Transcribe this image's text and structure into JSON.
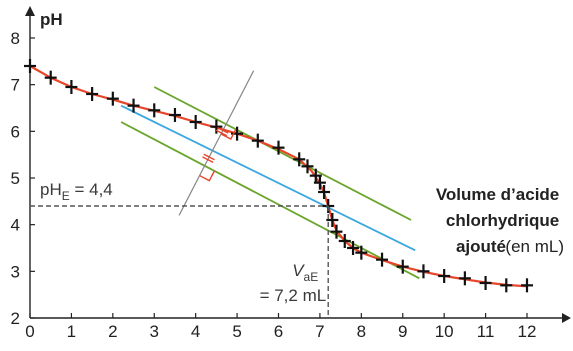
{
  "chart_data": {
    "type": "scatter",
    "ylabel": "pH",
    "xlabel": {
      "lines": [
        "Volume d’acide",
        "chlorhydrique",
        "ajouté"
      ],
      "unit": "(en mL)"
    },
    "xlim": [
      0,
      12
    ],
    "ylim": [
      2,
      8
    ],
    "x_ticks": [
      "0",
      "1",
      "2",
      "3",
      "4",
      "5",
      "6",
      "7",
      "8",
      "9",
      "10",
      "11",
      "12"
    ],
    "y_ticks": [
      "2",
      "3",
      "4",
      "5",
      "6",
      "7",
      "8"
    ],
    "grid": false,
    "series": [
      {
        "kind": "points",
        "marker": "plus",
        "color": "#111111",
        "points": [
          [
            0,
            7.4
          ],
          [
            0.5,
            7.15
          ],
          [
            1,
            6.95
          ],
          [
            1.5,
            6.8
          ],
          [
            2,
            6.7
          ],
          [
            2.5,
            6.55
          ],
          [
            3,
            6.45
          ],
          [
            3.5,
            6.35
          ],
          [
            4,
            6.2
          ],
          [
            4.5,
            6.1
          ],
          [
            5,
            5.95
          ],
          [
            5.5,
            5.8
          ],
          [
            6,
            5.65
          ],
          [
            6.5,
            5.4
          ],
          [
            6.7,
            5.25
          ],
          [
            6.9,
            5.05
          ],
          [
            7.0,
            4.9
          ],
          [
            7.1,
            4.7
          ],
          [
            7.2,
            4.4
          ],
          [
            7.3,
            4.1
          ],
          [
            7.4,
            3.85
          ],
          [
            7.6,
            3.65
          ],
          [
            7.8,
            3.5
          ],
          [
            8,
            3.4
          ],
          [
            8.5,
            3.25
          ],
          [
            9,
            3.1
          ],
          [
            9.5,
            3.0
          ],
          [
            10,
            2.9
          ],
          [
            10.5,
            2.85
          ],
          [
            11,
            2.75
          ],
          [
            11.5,
            2.7
          ],
          [
            12,
            2.7
          ]
        ]
      },
      {
        "kind": "curve",
        "color": "#e8452a",
        "points": [
          [
            0,
            7.4
          ],
          [
            0.5,
            7.15
          ],
          [
            1,
            6.95
          ],
          [
            1.5,
            6.8
          ],
          [
            2,
            6.68
          ],
          [
            2.5,
            6.55
          ],
          [
            3,
            6.44
          ],
          [
            3.5,
            6.33
          ],
          [
            4,
            6.2
          ],
          [
            4.5,
            6.08
          ],
          [
            5,
            5.95
          ],
          [
            5.5,
            5.8
          ],
          [
            6,
            5.62
          ],
          [
            6.5,
            5.4
          ],
          [
            6.8,
            5.15
          ],
          [
            7.0,
            4.88
          ],
          [
            7.1,
            4.68
          ],
          [
            7.2,
            4.4
          ],
          [
            7.3,
            4.1
          ],
          [
            7.4,
            3.87
          ],
          [
            7.6,
            3.65
          ],
          [
            7.8,
            3.5
          ],
          [
            8,
            3.4
          ],
          [
            8.5,
            3.24
          ],
          [
            9,
            3.1
          ],
          [
            9.5,
            2.99
          ],
          [
            10,
            2.9
          ],
          [
            10.5,
            2.83
          ],
          [
            11,
            2.76
          ],
          [
            11.5,
            2.71
          ],
          [
            12,
            2.68
          ]
        ]
      },
      {
        "kind": "tangent",
        "color": "#6aa52b",
        "points": [
          [
            3,
            6.95
          ],
          [
            9.2,
            4.1
          ]
        ]
      },
      {
        "kind": "tangent",
        "color": "#6aa52b",
        "points": [
          [
            2.2,
            6.2
          ],
          [
            9.4,
            2.85
          ]
        ]
      },
      {
        "kind": "middle-line",
        "color": "#3aa7e0",
        "points": [
          [
            2.2,
            6.55
          ],
          [
            9.3,
            3.45
          ]
        ]
      },
      {
        "kind": "perpendicular",
        "color": "#888888",
        "points": [
          [
            3.6,
            4.2
          ],
          [
            5.4,
            7.3
          ]
        ]
      }
    ],
    "equivalence": {
      "x": 7.2,
      "y": 4.4,
      "ph_label": {
        "prefix": "pH",
        "sub": "E",
        "suffix": " = 4,4"
      },
      "v_label": {
        "prefix": "V",
        "sub": "aE",
        "value": "= 7,2 mL"
      }
    }
  }
}
